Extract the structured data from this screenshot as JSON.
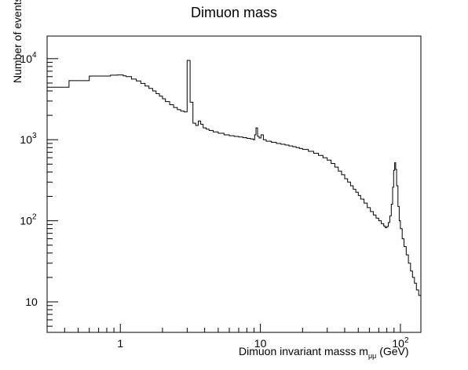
{
  "chart_data": {
    "type": "line",
    "step": true,
    "title": "Dimuon mass",
    "xlabel_prefix": "Dimuon invariant masss m",
    "xlabel_sub": "μμ",
    "xlabel_suffix": " (GeV)",
    "ylabel": "Number of events",
    "xscale": "log",
    "yscale": "log",
    "xlim": [
      0.3,
      140
    ],
    "ylim": [
      4.2,
      19000
    ],
    "grid": false,
    "legend": "none",
    "x_tick_labels": [
      {
        "value": 1,
        "label": "1"
      },
      {
        "value": 10,
        "label": "10"
      },
      {
        "value": 100,
        "label": "10",
        "sup": "2"
      }
    ],
    "y_tick_labels": [
      {
        "value": 10,
        "label": "10"
      },
      {
        "value": 100,
        "label": "10",
        "sup": "2"
      },
      {
        "value": 1000,
        "label": "10",
        "sup": "3"
      },
      {
        "value": 10000,
        "label": "10",
        "sup": "4"
      }
    ],
    "series": [
      {
        "points": [
          [
            0.3,
            4450
          ],
          [
            0.43,
            5350
          ],
          [
            0.6,
            6100
          ],
          [
            0.85,
            6250
          ],
          [
            0.95,
            6300
          ],
          [
            1.0,
            6300
          ],
          [
            1.05,
            6150
          ],
          [
            1.1,
            6000
          ],
          [
            1.2,
            5600
          ],
          [
            1.3,
            5300
          ],
          [
            1.4,
            4950
          ],
          [
            1.5,
            4600
          ],
          [
            1.6,
            4300
          ],
          [
            1.7,
            4000
          ],
          [
            1.8,
            3700
          ],
          [
            1.9,
            3450
          ],
          [
            2.0,
            3200
          ],
          [
            2.1,
            2950
          ],
          [
            2.25,
            2700
          ],
          [
            2.4,
            2500
          ],
          [
            2.55,
            2350
          ],
          [
            2.7,
            2250
          ],
          [
            2.85,
            2200
          ],
          [
            2.95,
            2200
          ],
          [
            3.0,
            9500
          ],
          [
            3.12,
            9500
          ],
          [
            3.15,
            2900
          ],
          [
            3.3,
            1600
          ],
          [
            3.45,
            1500
          ],
          [
            3.6,
            1700
          ],
          [
            3.75,
            1550
          ],
          [
            3.9,
            1400
          ],
          [
            4.1,
            1350
          ],
          [
            4.3,
            1300
          ],
          [
            4.6,
            1250
          ],
          [
            5.0,
            1200
          ],
          [
            5.5,
            1150
          ],
          [
            6.0,
            1120
          ],
          [
            6.5,
            1100
          ],
          [
            7.0,
            1080
          ],
          [
            7.5,
            1060
          ],
          [
            8.0,
            1040
          ],
          [
            8.5,
            1020
          ],
          [
            8.9,
            1000
          ],
          [
            9.1,
            1150
          ],
          [
            9.3,
            1400
          ],
          [
            9.55,
            1100
          ],
          [
            9.8,
            1050
          ],
          [
            10.1,
            1150
          ],
          [
            10.5,
            1000
          ],
          [
            11.0,
            960
          ],
          [
            12.0,
            930
          ],
          [
            13.0,
            900
          ],
          [
            14.0,
            880
          ],
          [
            15.0,
            860
          ],
          [
            16.0,
            840
          ],
          [
            17.0,
            820
          ],
          [
            18.0,
            800
          ],
          [
            19.0,
            780
          ],
          [
            20.0,
            760
          ],
          [
            22.0,
            720
          ],
          [
            24.0,
            680
          ],
          [
            26.0,
            640
          ],
          [
            28.0,
            600
          ],
          [
            30.0,
            560
          ],
          [
            32.0,
            510
          ],
          [
            34.0,
            460
          ],
          [
            36.0,
            410
          ],
          [
            38.0,
            370
          ],
          [
            40.0,
            330
          ],
          [
            42.0,
            300
          ],
          [
            44.0,
            270
          ],
          [
            46.0,
            245
          ],
          [
            48.0,
            225
          ],
          [
            50.0,
            205
          ],
          [
            52.0,
            185
          ],
          [
            55.0,
            165
          ],
          [
            58.0,
            145
          ],
          [
            61.0,
            130
          ],
          [
            64.0,
            118
          ],
          [
            67.0,
            108
          ],
          [
            70.0,
            100
          ],
          [
            73.0,
            92
          ],
          [
            76.0,
            86
          ],
          [
            78.0,
            82
          ],
          [
            80.0,
            85
          ],
          [
            82.0,
            95
          ],
          [
            84.0,
            115
          ],
          [
            86.0,
            160
          ],
          [
            88.0,
            260
          ],
          [
            89.5,
            420
          ],
          [
            91.0,
            520
          ],
          [
            92.5,
            430
          ],
          [
            94.0,
            270
          ],
          [
            96.0,
            150
          ],
          [
            98.0,
            100
          ],
          [
            100.0,
            80
          ],
          [
            103.0,
            60
          ],
          [
            106.0,
            48
          ],
          [
            110.0,
            38
          ],
          [
            114.0,
            30
          ],
          [
            118.0,
            24
          ],
          [
            122.0,
            20
          ],
          [
            126.0,
            17
          ],
          [
            130.0,
            14
          ],
          [
            135.0,
            12
          ],
          [
            140.0,
            11
          ]
        ]
      }
    ]
  }
}
